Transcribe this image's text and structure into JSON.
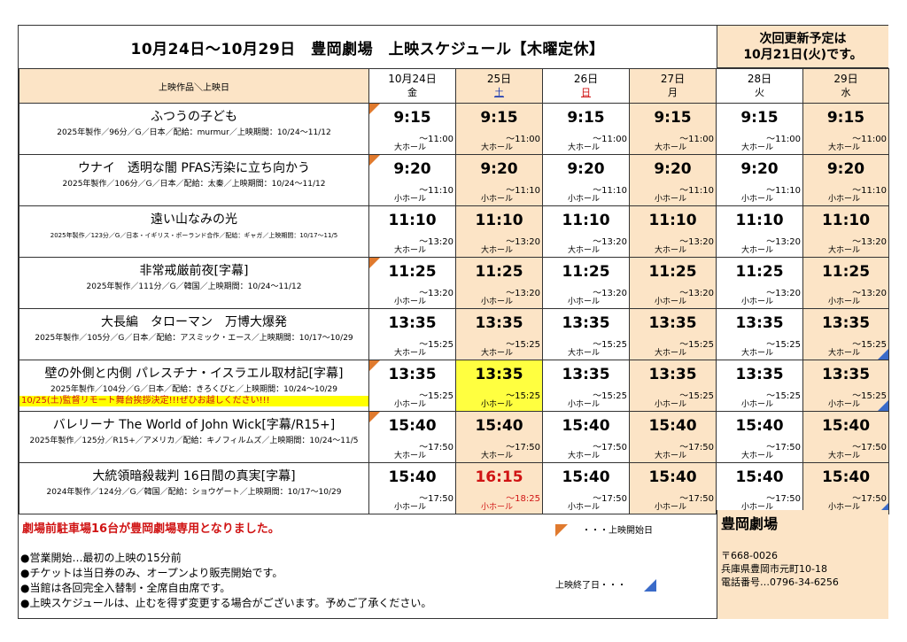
{
  "header": {
    "title": "10月24日～10月29日　豊岡劇場　上映スケジュール【木曜定休】",
    "next_update_1": "次回更新予定は",
    "next_update_2": "10月21日(火)です。"
  },
  "table": {
    "corner_label": "上映作品＼上映日",
    "days": [
      {
        "date": "10月24日",
        "dow": "金",
        "type": "weekday"
      },
      {
        "date": "25日",
        "dow": "土",
        "type": "sat"
      },
      {
        "date": "26日",
        "dow": "日",
        "type": "sun"
      },
      {
        "date": "27日",
        "dow": "月",
        "type": "weekday"
      },
      {
        "date": "28日",
        "dow": "火",
        "type": "weekday"
      },
      {
        "date": "29日",
        "dow": "水",
        "type": "weekday"
      }
    ]
  },
  "films": [
    {
      "title": "ふつうの子ども",
      "meta": "2025年製作／96分／G／日本／配給：murmur／上映期間：10/24～11/12",
      "meta_small": false,
      "start_marker": true,
      "showings": [
        {
          "start": "9:15",
          "end": "～11:00",
          "hall": "大ホール"
        },
        {
          "start": "9:15",
          "end": "～11:00",
          "hall": "大ホール"
        },
        {
          "start": "9:15",
          "end": "～11:00",
          "hall": "大ホール"
        },
        {
          "start": "9:15",
          "end": "～11:00",
          "hall": "大ホール"
        },
        {
          "start": "9:15",
          "end": "～11:00",
          "hall": "大ホール"
        },
        {
          "start": "9:15",
          "end": "～11:00",
          "hall": "大ホール"
        }
      ]
    },
    {
      "title": "ウナイ　透明な闇 PFAS汚染に立ち向かう",
      "meta": "2025年製作／106分／G／日本／配給：太秦／上映期間：10/24～11/12",
      "meta_small": false,
      "start_marker": true,
      "showings": [
        {
          "start": "9:20",
          "end": "～11:10",
          "hall": "小ホール"
        },
        {
          "start": "9:20",
          "end": "～11:10",
          "hall": "小ホール"
        },
        {
          "start": "9:20",
          "end": "～11:10",
          "hall": "小ホール"
        },
        {
          "start": "9:20",
          "end": "～11:10",
          "hall": "小ホール"
        },
        {
          "start": "9:20",
          "end": "～11:10",
          "hall": "小ホール"
        },
        {
          "start": "9:20",
          "end": "～11:10",
          "hall": "小ホール"
        }
      ]
    },
    {
      "title": "遠い山なみの光",
      "meta": "2025年製作／123分／G／日本・イギリス・ポーランド合作／配給：ギャガ／上映期間：10/17～11/5",
      "meta_small": true,
      "start_marker": false,
      "showings": [
        {
          "start": "11:10",
          "end": "～13:20",
          "hall": "大ホール"
        },
        {
          "start": "11:10",
          "end": "～13:20",
          "hall": "大ホール"
        },
        {
          "start": "11:10",
          "end": "～13:20",
          "hall": "大ホール"
        },
        {
          "start": "11:10",
          "end": "～13:20",
          "hall": "大ホール"
        },
        {
          "start": "11:10",
          "end": "～13:20",
          "hall": "大ホール"
        },
        {
          "start": "11:10",
          "end": "～13:20",
          "hall": "大ホール"
        }
      ]
    },
    {
      "title": "非常戒厳前夜[字幕]",
      "meta": "2025年製作／111分／G／韓国／上映期間：10/24～11/12",
      "meta_small": false,
      "start_marker": true,
      "showings": [
        {
          "start": "11:25",
          "end": "～13:20",
          "hall": "小ホール"
        },
        {
          "start": "11:25",
          "end": "～13:20",
          "hall": "小ホール"
        },
        {
          "start": "11:25",
          "end": "～13:20",
          "hall": "小ホール"
        },
        {
          "start": "11:25",
          "end": "～13:20",
          "hall": "小ホール"
        },
        {
          "start": "11:25",
          "end": "～13:20",
          "hall": "小ホール"
        },
        {
          "start": "11:25",
          "end": "～13:20",
          "hall": "小ホール"
        }
      ]
    },
    {
      "title": "大長編　タローマン　万博大爆発",
      "meta": "2025年製作／105分／G／日本／配給：アスミック・エース／上映期間：10/17～10/29",
      "meta_small": false,
      "start_marker": false,
      "showings": [
        {
          "start": "13:35",
          "end": "～15:25",
          "hall": "大ホール"
        },
        {
          "start": "13:35",
          "end": "～15:25",
          "hall": "大ホール"
        },
        {
          "start": "13:35",
          "end": "～15:25",
          "hall": "大ホール"
        },
        {
          "start": "13:35",
          "end": "～15:25",
          "hall": "大ホール"
        },
        {
          "start": "13:35",
          "end": "～15:25",
          "hall": "大ホール"
        },
        {
          "start": "13:35",
          "end": "～15:25",
          "hall": "大ホール",
          "end_marker": true
        }
      ]
    },
    {
      "title": "壁の外側と内側 パレスチナ・イスラエル取材記[字幕]",
      "meta": "2025年製作／104分／G／日本／配給：きろくびと／上映期間：10/24～10/29",
      "meta_small": false,
      "start_marker": true,
      "notice": "10/25(土)監督リモート舞台挨拶決定!!!ぜひお越しください!!!",
      "showings": [
        {
          "start": "13:35",
          "end": "～15:25",
          "hall": "小ホール"
        },
        {
          "start": "13:35",
          "end": "～15:25",
          "hall": "小ホール",
          "highlight": true
        },
        {
          "start": "13:35",
          "end": "～15:25",
          "hall": "小ホール"
        },
        {
          "start": "13:35",
          "end": "～15:25",
          "hall": "小ホール"
        },
        {
          "start": "13:35",
          "end": "～15:25",
          "hall": "小ホール"
        },
        {
          "start": "13:35",
          "end": "～15:25",
          "hall": "小ホール",
          "end_marker": true
        }
      ]
    },
    {
      "title": "バレリーナ The World of John Wick[字幕/R15+]",
      "meta": "2025年製作／125分／R15+／アメリカ／配給：キノフィルムズ／上映期間：10/24～11/5",
      "meta_small": false,
      "start_marker": true,
      "showings": [
        {
          "start": "15:40",
          "end": "～17:50",
          "hall": "大ホール"
        },
        {
          "start": "15:40",
          "end": "～17:50",
          "hall": "大ホール"
        },
        {
          "start": "15:40",
          "end": "～17:50",
          "hall": "大ホール"
        },
        {
          "start": "15:40",
          "end": "～17:50",
          "hall": "大ホール"
        },
        {
          "start": "15:40",
          "end": "～17:50",
          "hall": "大ホール"
        },
        {
          "start": "15:40",
          "end": "～17:50",
          "hall": "大ホール"
        }
      ]
    },
    {
      "title": "大統領暗殺裁判 16日間の真実[字幕]",
      "meta": "2024年製作／124分／G／韓国／配給：ショウゲート／上映期間：10/17～10/29",
      "meta_small": false,
      "start_marker": false,
      "showings": [
        {
          "start": "15:40",
          "end": "～17:50",
          "hall": "小ホール"
        },
        {
          "start": "16:15",
          "end": "～18:25",
          "hall": "小ホール",
          "red": true
        },
        {
          "start": "15:40",
          "end": "～17:50",
          "hall": "小ホール"
        },
        {
          "start": "15:40",
          "end": "～17:50",
          "hall": "小ホール"
        },
        {
          "start": "15:40",
          "end": "～17:50",
          "hall": "小ホール"
        },
        {
          "start": "15:40",
          "end": "～17:50",
          "hall": "小ホール",
          "end_marker": true
        }
      ]
    }
  ],
  "footer": {
    "parking": "劇場前駐車場16台が豊岡劇場専用となりました。",
    "notes": [
      "●営業開始…最初の上映の15分前",
      "●チケットは当日券のみ、オープンより販売開始です。",
      "●当館は各回完全入替制・全席自由席です。",
      "●上映スケジュールは、止むを得ず変更する場合がございます。予めご了承ください。"
    ],
    "legend_start": "・・・上映開始日",
    "legend_end": "上映終了日・・・",
    "colors": {
      "start_marker": "#e07a2e",
      "end_marker": "#3a6bc9",
      "accent_bg": "#fce4c6",
      "highlight": "#ffff40",
      "red": "#d01414"
    }
  },
  "theater": {
    "name": "豊岡劇場",
    "postal": "〒668-0026",
    "address": "兵庫県豊岡市元町10-18",
    "phone": "電話番号…0796-34-6256"
  }
}
